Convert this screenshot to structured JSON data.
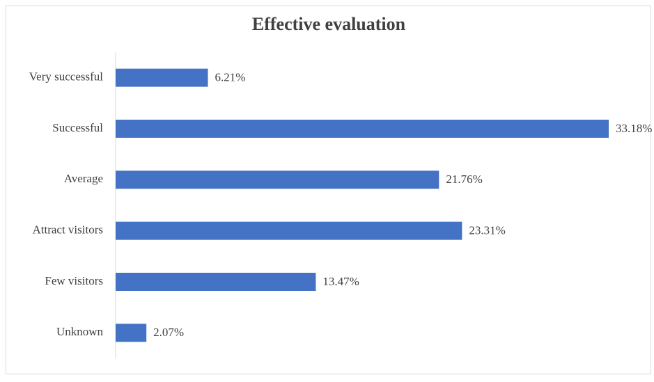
{
  "chart_data": {
    "type": "bar",
    "orientation": "horizontal",
    "title": "Effective evaluation",
    "categories": [
      "Very successful",
      "Successful",
      "Average",
      "Attract visitors",
      "Few visitors",
      "Unknown"
    ],
    "values": [
      6.21,
      33.18,
      21.76,
      23.31,
      13.47,
      2.07
    ],
    "value_labels": [
      "6.21%",
      "33.18%",
      "21.76%",
      "23.31%",
      "13.47%",
      "2.07%"
    ],
    "color": "#4472c4"
  }
}
